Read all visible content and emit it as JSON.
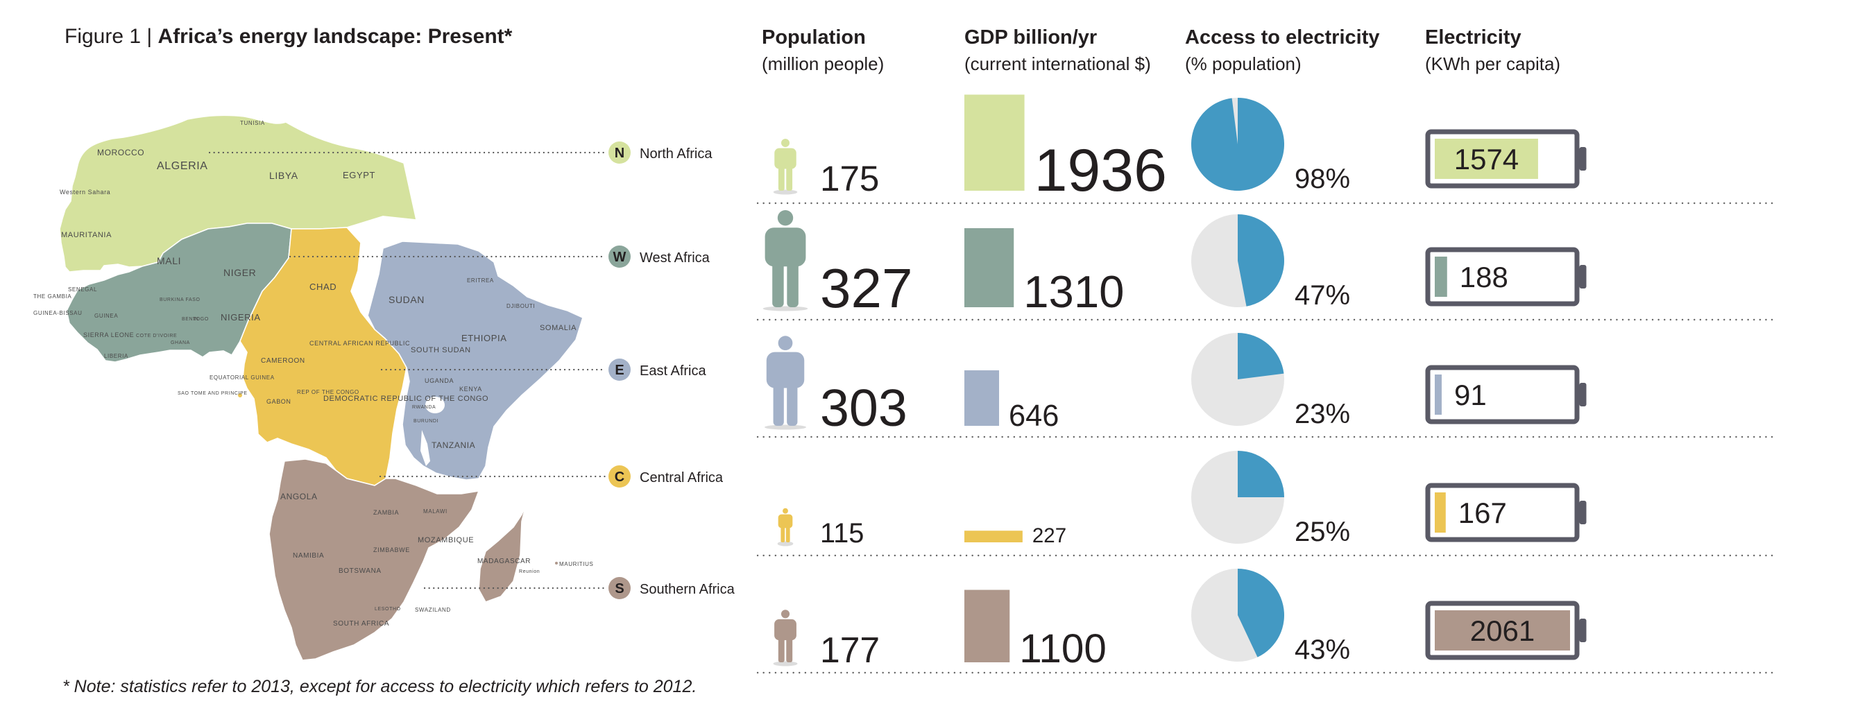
{
  "figure": {
    "title_prefix": "Figure 1 | ",
    "title_bold": "Africa’s energy landscape: Present*",
    "note": "* Note: statistics refer to 2013, except for access to electricity which refers to 2012."
  },
  "columns": {
    "population": {
      "title": "Population",
      "subtitle": "(million people)"
    },
    "gdp": {
      "title": "GDP billion/yr",
      "subtitle": "(current international $)"
    },
    "access": {
      "title": "Access to electricity",
      "subtitle": "(% population)"
    },
    "electricity": {
      "title": "Electricity",
      "subtitle": "(KWh per capita)"
    }
  },
  "regions": [
    {
      "code": "N",
      "name": "North Africa",
      "color": "#d5e29e"
    },
    {
      "code": "W",
      "name": "West Africa",
      "color": "#8aa59a"
    },
    {
      "code": "E",
      "name": "East Africa",
      "color": "#a3b1c8"
    },
    {
      "code": "C",
      "name": "Central Africa",
      "color": "#ecc554"
    },
    {
      "code": "S",
      "name": "Southern Africa",
      "color": "#ae978b"
    }
  ],
  "map_labels": [
    "TUNISIA",
    "MOROCCO",
    "ALGERIA",
    "LIBYA",
    "EGYPT",
    "Western Sahara",
    "MAURITANIA",
    "MALI",
    "NIGER",
    "CHAD",
    "SUDAN",
    "ERITREA",
    "DJIBOUTI",
    "ETHIOPIA",
    "SOMALIA",
    "THE GAMBIA",
    "SENEGAL",
    "GUINEA-BISSAU",
    "GUINEA",
    "SIERRA LEONE",
    "LIBERIA",
    "COTE D'IVOIRE",
    "GHANA",
    "BURKINA FASO",
    "TOGO",
    "BENIN",
    "NIGERIA",
    "CAMEROON",
    "CENTRAL AFRICAN REPUBLIC",
    "SOUTH SUDAN",
    "UGANDA",
    "KENYA",
    "EQUATORIAL GUINEA",
    "SAO TOME AND PRINCIPE",
    "GABON",
    "REP OF THE CONGO",
    "DEMOCRATIC REPUBLIC OF THE CONGO",
    "RWANDA",
    "BURUNDI",
    "TANZANIA",
    "ANGOLA",
    "ZAMBIA",
    "MALAWI",
    "MOZAMBIQUE",
    "ZIMBABWE",
    "NAMIBIA",
    "BOTSWANA",
    "MADAGASCAR",
    "MAURITIUS",
    "Reunion",
    "SWAZILAND",
    "SOUTH AFRICA",
    "LESOTHO"
  ],
  "chart_data": {
    "type": "table",
    "title": "Africa’s energy landscape: Present*",
    "rows": [
      "North Africa",
      "West Africa",
      "East Africa",
      "Central Africa",
      "Southern Africa"
    ],
    "population_million": [
      175,
      327,
      303,
      115,
      177
    ],
    "population_labels": [
      "175",
      "327",
      "303",
      "115",
      "177"
    ],
    "gdp_billion": [
      1936,
      1310,
      646,
      227,
      1100
    ],
    "gdp_labels": [
      "1936",
      "1310",
      "646",
      "227",
      "1100"
    ],
    "access_pct": [
      98,
      47,
      23,
      25,
      43
    ],
    "access_labels": [
      "98%",
      "47%",
      "23%",
      "25%",
      "43%"
    ],
    "electricity_kwh": [
      1574,
      188,
      91,
      167,
      2061
    ],
    "electricity_labels": [
      "1574",
      "188",
      "91",
      "167",
      "2061"
    ],
    "access_color": "#4399c3",
    "pie_background": "#e6e6e6",
    "battery_color": "#5a5a66"
  }
}
